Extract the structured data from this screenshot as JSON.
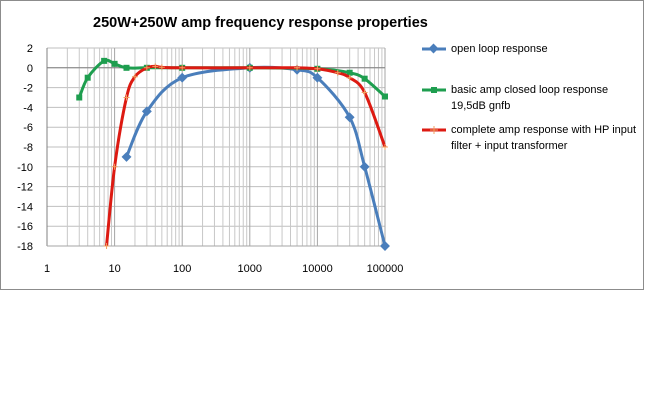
{
  "chart_data": {
    "type": "line",
    "title": "250W+250W amp frequency response properties",
    "xlabel": "",
    "ylabel": "",
    "xscale": "log",
    "xlim": [
      1,
      100000
    ],
    "ylim": [
      -18,
      2
    ],
    "x_ticks": [
      "1",
      "10",
      "100",
      "1000",
      "10000",
      "100000"
    ],
    "y_ticks": [
      "2",
      "0",
      "-2",
      "-4",
      "-6",
      "-8",
      "-10",
      "-12",
      "-14",
      "-16",
      "-18"
    ],
    "grid": true,
    "legend_position": "right",
    "series": [
      {
        "name": "open loop response",
        "color": "#4a7ebb",
        "marker": "diamond",
        "x": [
          15,
          30,
          100,
          1000,
          5000,
          10000,
          30000,
          50000,
          100000
        ],
        "y": [
          -9,
          -4.4,
          -1,
          0,
          -0.2,
          -1,
          -5,
          -10,
          -18
        ]
      },
      {
        "name": "basic amp closed loop response 19,5dB gnfb",
        "color": "#1e9e4f",
        "marker": "square",
        "x": [
          3,
          4,
          7,
          10,
          15,
          30,
          100,
          1000,
          10000,
          30000,
          50000,
          100000
        ],
        "y": [
          -3,
          -1,
          0.7,
          0.4,
          0,
          0,
          0,
          0,
          -0.1,
          -0.5,
          -1.1,
          -2.9
        ]
      },
      {
        "name": "complete amp response with HP input filter + input transformer",
        "color": "#dd1a12",
        "marker": "plus",
        "x": [
          7.6,
          10,
          15,
          20,
          30,
          40,
          50,
          100,
          1000,
          5000,
          10000,
          20000,
          30000,
          50000,
          100000
        ],
        "y": [
          -18,
          -10,
          -3,
          -0.9,
          0,
          0.15,
          0.05,
          0,
          0,
          0,
          -0.1,
          -0.5,
          -1,
          -2.5,
          -8
        ]
      }
    ]
  }
}
